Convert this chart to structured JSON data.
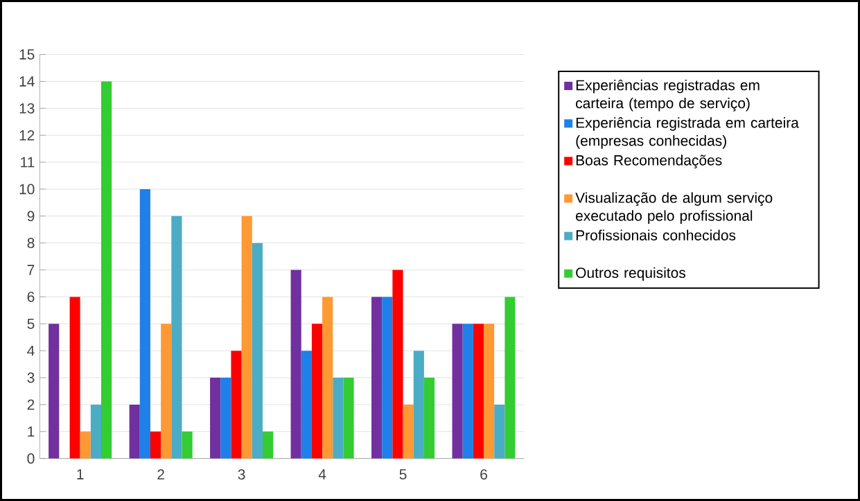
{
  "chart_data": {
    "type": "bar",
    "categories": [
      "1",
      "2",
      "3",
      "4",
      "5",
      "6"
    ],
    "series": [
      {
        "name": "Experiências registradas em carteira (tempo de serviço)",
        "color": "#7030a0",
        "values": [
          5,
          2,
          3,
          7,
          6,
          5
        ]
      },
      {
        "name": "Experiência registrada em carteira (empresas conhecidas)",
        "color": "#1e80e8",
        "values": [
          0,
          10,
          3,
          4,
          6,
          5
        ]
      },
      {
        "name": "Boas Recomendações",
        "color": "#ff0000",
        "values": [
          6,
          1,
          4,
          5,
          7,
          5
        ]
      },
      {
        "name": "Visualização de algum serviço executado pelo profissional",
        "color": "#ff9933",
        "values": [
          1,
          5,
          9,
          6,
          2,
          5
        ]
      },
      {
        "name": "Profissionais conhecidos",
        "color": "#4bacc6",
        "values": [
          2,
          9,
          8,
          3,
          4,
          2
        ]
      },
      {
        "name": "Outros requisitos",
        "color": "#33cc33",
        "values": [
          14,
          1,
          1,
          3,
          3,
          6
        ]
      }
    ],
    "ylim": [
      0,
      15
    ],
    "yticks": [
      0,
      1,
      2,
      3,
      4,
      5,
      6,
      7,
      8,
      9,
      10,
      11,
      12,
      13,
      14,
      15
    ],
    "grid": "y",
    "legend": "right"
  }
}
